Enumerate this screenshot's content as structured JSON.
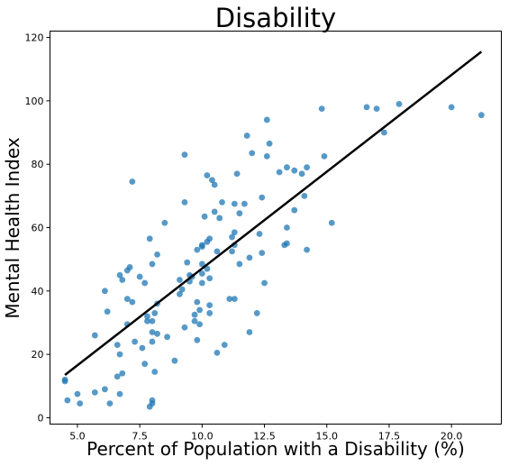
{
  "chart_data": {
    "type": "scatter",
    "title": "Disability",
    "xlabel": "Percent of Population with a Disability (%)",
    "ylabel": "Mental Health Index",
    "xlim": [
      3.9,
      22.0
    ],
    "ylim": [
      -2,
      122
    ],
    "xticks": [
      5.0,
      7.5,
      10.0,
      12.5,
      15.0,
      17.5,
      20.0
    ],
    "xtick_labels": [
      "5.0",
      "7.5",
      "10.0",
      "12.5",
      "15.0",
      "17.5",
      "20.0"
    ],
    "yticks": [
      0,
      20,
      40,
      60,
      80,
      100,
      120
    ],
    "ytick_labels": [
      "0",
      "20",
      "40",
      "60",
      "80",
      "100",
      "120"
    ],
    "grid": false,
    "colors": {
      "points": "#1f77b4",
      "fit_line": "#000000"
    },
    "series": [
      {
        "values": [
          [
            4.5,
            11.5
          ],
          [
            4.5,
            12.0
          ],
          [
            4.6,
            5.5
          ],
          [
            5.0,
            7.5
          ],
          [
            5.1,
            4.5
          ],
          [
            5.7,
            8.0
          ],
          [
            5.7,
            26.0
          ],
          [
            6.1,
            9.0
          ],
          [
            6.1,
            40.0
          ],
          [
            6.2,
            33.5
          ],
          [
            6.3,
            4.5
          ],
          [
            6.6,
            13.0
          ],
          [
            6.6,
            23.0
          ],
          [
            6.7,
            7.5
          ],
          [
            6.7,
            20.0
          ],
          [
            6.7,
            45.0
          ],
          [
            6.8,
            14.0
          ],
          [
            6.8,
            43.5
          ],
          [
            7.0,
            29.5
          ],
          [
            7.0,
            37.5
          ],
          [
            7.0,
            46.5
          ],
          [
            7.1,
            47.5
          ],
          [
            7.2,
            36.5
          ],
          [
            7.2,
            74.5
          ],
          [
            7.3,
            24.0
          ],
          [
            7.5,
            44.5
          ],
          [
            7.6,
            22.0
          ],
          [
            7.7,
            17.0
          ],
          [
            7.7,
            42.5
          ],
          [
            7.8,
            30.5
          ],
          [
            7.8,
            32.0
          ],
          [
            7.9,
            56.5
          ],
          [
            7.9,
            3.5
          ],
          [
            8.0,
            4.5
          ],
          [
            8.0,
            5.5
          ],
          [
            8.0,
            27.0
          ],
          [
            8.0,
            30.5
          ],
          [
            8.0,
            24.0
          ],
          [
            8.0,
            48.5
          ],
          [
            8.1,
            14.5
          ],
          [
            8.1,
            33.0
          ],
          [
            8.2,
            26.5
          ],
          [
            8.2,
            36.0
          ],
          [
            8.2,
            51.5
          ],
          [
            8.5,
            61.5
          ],
          [
            8.6,
            25.5
          ],
          [
            8.9,
            18.0
          ],
          [
            9.1,
            39.0
          ],
          [
            9.1,
            43.5
          ],
          [
            9.2,
            40.5
          ],
          [
            9.3,
            68.0
          ],
          [
            9.3,
            83.0
          ],
          [
            9.3,
            28.5
          ],
          [
            9.4,
            49.0
          ],
          [
            9.5,
            45.0
          ],
          [
            9.5,
            43.0
          ],
          [
            9.6,
            44.5
          ],
          [
            9.7,
            30.5
          ],
          [
            9.7,
            32.5
          ],
          [
            9.8,
            36.5
          ],
          [
            9.8,
            53.0
          ],
          [
            9.8,
            24.5
          ],
          [
            9.9,
            29.5
          ],
          [
            9.9,
            34.0
          ],
          [
            10.0,
            45.5
          ],
          [
            10.0,
            48.5
          ],
          [
            10.0,
            54.5
          ],
          [
            10.0,
            42.5
          ],
          [
            10.0,
            54.0
          ],
          [
            10.1,
            63.5
          ],
          [
            10.2,
            47.0
          ],
          [
            10.2,
            55.5
          ],
          [
            10.2,
            76.5
          ],
          [
            10.3,
            33.0
          ],
          [
            10.3,
            35.5
          ],
          [
            10.3,
            44.0
          ],
          [
            10.3,
            56.5
          ],
          [
            10.4,
            75.0
          ],
          [
            10.5,
            65.0
          ],
          [
            10.5,
            73.5
          ],
          [
            10.6,
            52.5
          ],
          [
            10.6,
            20.5
          ],
          [
            10.7,
            63.0
          ],
          [
            10.8,
            68.0
          ],
          [
            10.9,
            23.0
          ],
          [
            11.1,
            37.5
          ],
          [
            11.2,
            52.5
          ],
          [
            11.2,
            57.0
          ],
          [
            11.3,
            37.5
          ],
          [
            11.3,
            54.5
          ],
          [
            11.3,
            58.5
          ],
          [
            11.3,
            67.5
          ],
          [
            11.4,
            77.0
          ],
          [
            11.5,
            48.5
          ],
          [
            11.5,
            64.5
          ],
          [
            11.7,
            67.5
          ],
          [
            11.8,
            89.0
          ],
          [
            11.9,
            27.0
          ],
          [
            11.9,
            50.5
          ],
          [
            12.0,
            83.5
          ],
          [
            12.2,
            33.0
          ],
          [
            12.3,
            58.0
          ],
          [
            12.4,
            52.0
          ],
          [
            12.4,
            69.5
          ],
          [
            12.5,
            42.5
          ],
          [
            12.6,
            82.5
          ],
          [
            12.6,
            94.0
          ],
          [
            12.7,
            86.5
          ],
          [
            13.1,
            77.5
          ],
          [
            13.3,
            54.5
          ],
          [
            13.4,
            55.0
          ],
          [
            13.4,
            60.0
          ],
          [
            13.4,
            79.0
          ],
          [
            13.7,
            65.5
          ],
          [
            13.7,
            78.0
          ],
          [
            14.0,
            77.0
          ],
          [
            14.1,
            70.0
          ],
          [
            14.2,
            79.0
          ],
          [
            14.2,
            53.0
          ],
          [
            14.8,
            97.5
          ],
          [
            14.9,
            82.5
          ],
          [
            15.2,
            61.5
          ],
          [
            16.6,
            98.0
          ],
          [
            17.0,
            97.5
          ],
          [
            17.3,
            90.0
          ],
          [
            17.9,
            99.0
          ],
          [
            20.0,
            98.0
          ],
          [
            21.2,
            95.5
          ]
        ]
      }
    ],
    "fit_line": {
      "x": [
        4.5,
        21.2
      ],
      "y": [
        13.5,
        115.5
      ]
    }
  }
}
